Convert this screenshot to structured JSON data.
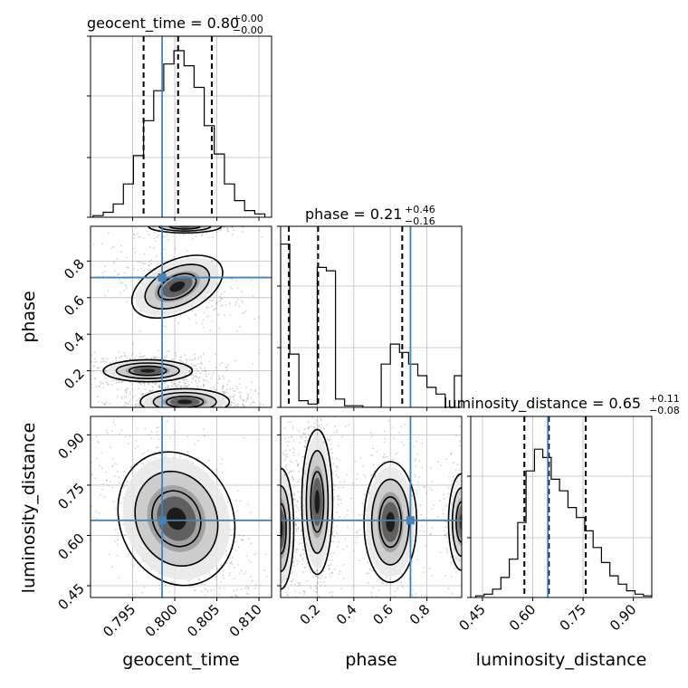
{
  "chart_data": {
    "type": "corner",
    "parameters": [
      "geocent_time",
      "phase",
      "luminosity_distance"
    ],
    "truths": [
      0.7985,
      0.71,
      0.645
    ],
    "colors": {
      "truth": "#4682b4",
      "hist": "#000000",
      "grid": "#bcbcbc",
      "samples": "#7f7f7f"
    },
    "grid": true,
    "diagonal": [
      {
        "name": "geocent_time",
        "title_prefix": "geocent_time = 0.80",
        "title_sup": "+0.00",
        "title_sub": "−0.00",
        "xlim": [
          0.79,
          0.8115
        ],
        "ylim": [
          0,
          1
        ],
        "bin_edges": [
          0.7903,
          0.7915,
          0.7927,
          0.7939,
          0.7951,
          0.7963,
          0.7975,
          0.7987,
          0.7999,
          0.8011,
          0.8023,
          0.8035,
          0.8047,
          0.8059,
          0.8071,
          0.8083,
          0.8095,
          0.8107
        ],
        "counts": [
          0.01,
          0.03,
          0.08,
          0.2,
          0.37,
          0.58,
          0.76,
          0.92,
          1.0,
          0.91,
          0.78,
          0.55,
          0.38,
          0.2,
          0.1,
          0.04,
          0.02
        ],
        "quantiles": [
          0.7963,
          0.8004,
          0.8044
        ]
      },
      {
        "name": "phase",
        "title_prefix": "phase = 0.21",
        "title_sup": "+0.46",
        "title_sub": "−0.16",
        "xlim": [
          0.0,
          0.99
        ],
        "ylim": [
          0,
          1
        ],
        "bin_edges": [
          0.0,
          0.05,
          0.1,
          0.15,
          0.2,
          0.25,
          0.3,
          0.35,
          0.4,
          0.45,
          0.5,
          0.55,
          0.6,
          0.65,
          0.7,
          0.75,
          0.8,
          0.85,
          0.9,
          0.95,
          0.99
        ],
        "counts": [
          0.98,
          0.32,
          0.04,
          0.02,
          0.84,
          0.82,
          0.05,
          0.01,
          0.01,
          0.0,
          0.0,
          0.26,
          0.38,
          0.33,
          0.26,
          0.19,
          0.12,
          0.08,
          0.0,
          0.19
        ],
        "quantiles": [
          0.045,
          0.205,
          0.665
        ]
      },
      {
        "name": "luminosity_distance",
        "title_prefix": "luminosity_distance = 0.65",
        "title_sup": "+0.11",
        "title_sub": "−0.08",
        "xlim": [
          0.415,
          0.955
        ],
        "ylim": [
          0,
          1
        ],
        "bin_edges": [
          0.43,
          0.455,
          0.48,
          0.505,
          0.53,
          0.555,
          0.58,
          0.605,
          0.63,
          0.655,
          0.68,
          0.705,
          0.73,
          0.755,
          0.78,
          0.805,
          0.83,
          0.855,
          0.88,
          0.905,
          0.93,
          0.955
        ],
        "counts": [
          0.01,
          0.02,
          0.05,
          0.12,
          0.23,
          0.45,
          0.76,
          0.89,
          0.84,
          0.71,
          0.64,
          0.54,
          0.48,
          0.4,
          0.3,
          0.21,
          0.13,
          0.08,
          0.04,
          0.02,
          0.01
        ],
        "quantiles": [
          0.575,
          0.648,
          0.758
        ]
      }
    ],
    "axes": {
      "geocent_time": {
        "label": "geocent_time",
        "range": [
          0.79,
          0.8115
        ],
        "ticks": [
          0.795,
          0.8,
          0.805,
          0.81
        ],
        "tick_labels": [
          "0.795",
          "0.800",
          "0.805",
          "0.810"
        ]
      },
      "phase": {
        "label": "phase",
        "range": [
          0.0,
          0.99
        ],
        "ticks": [
          0.2,
          0.4,
          0.6,
          0.8
        ],
        "tick_labels": [
          "0.2",
          "0.4",
          "0.6",
          "0.8"
        ]
      },
      "luminosity_distance": {
        "label": "luminosity_distance",
        "range": [
          0.415,
          0.955
        ],
        "ticks": [
          0.45,
          0.6,
          0.75,
          0.9
        ],
        "tick_labels": [
          "0.45",
          "0.60",
          "0.75",
          "0.90"
        ]
      }
    },
    "density": [
      {
        "x": "geocent_time",
        "y": "phase",
        "clusters": [
          {
            "cx": 0.8003,
            "cy": 0.66,
            "sx": 0.0024,
            "sy": 0.06,
            "rho": -0.55,
            "w": 0.5
          },
          {
            "cx": 0.7968,
            "cy": 0.2,
            "sx": 0.0022,
            "sy": 0.025,
            "rho": 0.0,
            "w": 1.0
          },
          {
            "cx": 0.8012,
            "cy": 0.03,
            "sx": 0.0022,
            "sy": 0.03,
            "rho": 0.0,
            "w": 1.0
          },
          {
            "cx": 0.8012,
            "cy": 0.99,
            "sx": 0.0018,
            "sy": 0.015,
            "rho": 0.0,
            "w": 0.35
          }
        ]
      },
      {
        "x": "geocent_time",
        "y": "luminosity_distance",
        "clusters": [
          {
            "cx": 0.8002,
            "cy": 0.65,
            "sx": 0.0028,
            "sy": 0.085,
            "rho": -0.5,
            "w": 1.0
          }
        ]
      },
      {
        "x": "phase",
        "y": "luminosity_distance",
        "clusters": [
          {
            "cx": 0.0,
            "cy": 0.62,
            "sx": 0.03,
            "sy": 0.075,
            "rho": 0.0,
            "w": 1.0
          },
          {
            "cx": 0.2,
            "cy": 0.7,
            "sx": 0.035,
            "sy": 0.09,
            "rho": 0.0,
            "w": 0.9
          },
          {
            "cx": 0.6,
            "cy": 0.64,
            "sx": 0.06,
            "sy": 0.075,
            "rho": 0.0,
            "w": 0.6
          },
          {
            "cx": 0.99,
            "cy": 0.64,
            "sx": 0.03,
            "sy": 0.06,
            "rho": 0.0,
            "w": 0.35
          }
        ]
      }
    ]
  }
}
